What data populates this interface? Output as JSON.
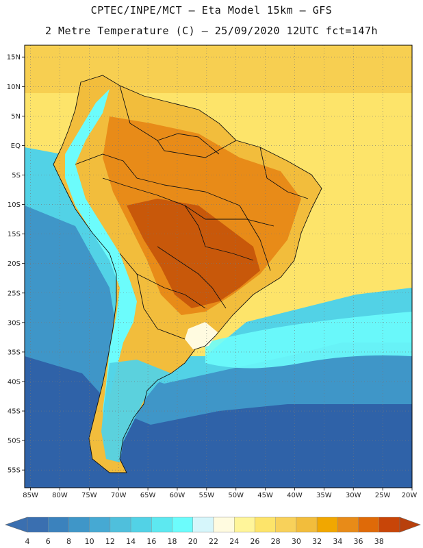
{
  "title_line1": "CPTEC/INPE/MCT –  Eta Model 15km – GFS",
  "title_line2": "2 Metre Temperature (C) – 25/09/2020 12UTC fct=147h",
  "lat_labels": [
    "15N",
    "10N",
    "5N",
    "EQ",
    "5S",
    "10S",
    "15S",
    "20S",
    "25S",
    "30S",
    "35S",
    "40S",
    "45S",
    "50S",
    "55S"
  ],
  "lon_labels": [
    "85W",
    "80W",
    "75W",
    "70W",
    "65W",
    "60W",
    "55W",
    "50W",
    "45W",
    "40W",
    "35W",
    "30W",
    "25W",
    "20W"
  ],
  "colorbar": {
    "labels": [
      "4",
      "6",
      "8",
      "10",
      "12",
      "14",
      "16",
      "18",
      "20",
      "22",
      "24",
      "26",
      "28",
      "30",
      "32",
      "34",
      "36",
      "38"
    ],
    "colors": [
      "#3a6fb0",
      "#3b82bd",
      "#3f96c8",
      "#46a9d3",
      "#4fbfdc",
      "#52d2e6",
      "#5de8f0",
      "#6cfcfc",
      "#d6f6fb",
      "#fffbe0",
      "#fff59a",
      "#fde46a",
      "#f8d15a",
      "#f2bd3c",
      "#f1a700",
      "#e88b18",
      "#df6a08",
      "#c84508"
    ],
    "under_color": "#3a6fb0",
    "over_color": "#b8400c"
  },
  "colors": {
    "ocean_deep": "#2f62a8",
    "ocean_mid": "#3f96c8",
    "ocean_light": "#52d2e6",
    "atlantic_warm": "#fde46a",
    "land_hot": "#c8580a",
    "land_warm": "#e88b18",
    "land_mild": "#f2bd3c",
    "andes_cool": "#6cfcfc"
  }
}
